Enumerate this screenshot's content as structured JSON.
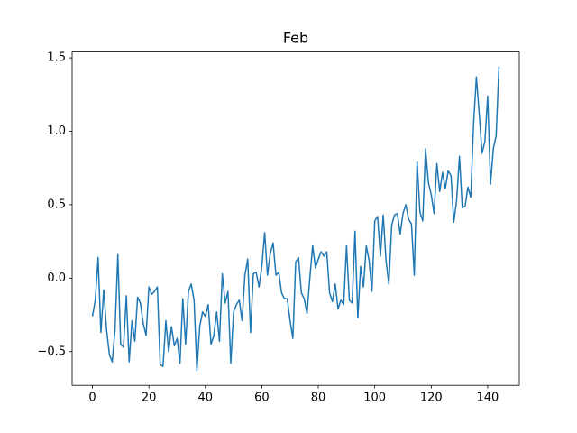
{
  "chart_data": {
    "type": "line",
    "title": "Feb",
    "color": "#1f77b4",
    "x": [
      0,
      1,
      2,
      3,
      4,
      5,
      6,
      7,
      8,
      9,
      10,
      11,
      12,
      13,
      14,
      15,
      16,
      17,
      18,
      19,
      20,
      21,
      22,
      23,
      24,
      25,
      26,
      27,
      28,
      29,
      30,
      31,
      32,
      33,
      34,
      35,
      36,
      37,
      38,
      39,
      40,
      41,
      42,
      43,
      44,
      45,
      46,
      47,
      48,
      49,
      50,
      51,
      52,
      53,
      54,
      55,
      56,
      57,
      58,
      59,
      60,
      61,
      62,
      63,
      64,
      65,
      66,
      67,
      68,
      69,
      70,
      71,
      72,
      73,
      74,
      75,
      76,
      77,
      78,
      79,
      80,
      81,
      82,
      83,
      84,
      85,
      86,
      87,
      88,
      89,
      90,
      91,
      92,
      93,
      94,
      95,
      96,
      97,
      98,
      99,
      100,
      101,
      102,
      103,
      104,
      105,
      106,
      107,
      108,
      109,
      110,
      111,
      112,
      113,
      114,
      115,
      116,
      117,
      118,
      119,
      120,
      121,
      122,
      123,
      124,
      125,
      126,
      127,
      128,
      129,
      130,
      131,
      132,
      133,
      134,
      135,
      136,
      137,
      138,
      139,
      140,
      141,
      142,
      143,
      144
    ],
    "values": [
      -0.26,
      -0.15,
      0.14,
      -0.37,
      -0.08,
      -0.35,
      -0.52,
      -0.57,
      -0.35,
      0.16,
      -0.45,
      -0.47,
      -0.12,
      -0.57,
      -0.29,
      -0.43,
      -0.13,
      -0.17,
      -0.31,
      -0.39,
      -0.06,
      -0.11,
      -0.09,
      -0.06,
      -0.59,
      -0.6,
      -0.29,
      -0.5,
      -0.33,
      -0.46,
      -0.41,
      -0.58,
      -0.14,
      -0.45,
      -0.09,
      -0.04,
      -0.15,
      -0.63,
      -0.33,
      -0.23,
      -0.26,
      -0.18,
      -0.45,
      -0.39,
      -0.23,
      -0.43,
      0.03,
      -0.17,
      -0.09,
      -0.58,
      -0.23,
      -0.18,
      -0.15,
      -0.29,
      0.02,
      0.13,
      -0.37,
      0.03,
      0.04,
      -0.06,
      0.08,
      0.31,
      0.02,
      0.17,
      0.24,
      0.02,
      0.04,
      -0.1,
      -0.14,
      -0.14,
      -0.29,
      -0.41,
      0.11,
      0.14,
      -0.1,
      -0.14,
      -0.24,
      0.0,
      0.22,
      0.07,
      0.13,
      0.18,
      0.15,
      0.18,
      -0.1,
      -0.16,
      -0.04,
      -0.21,
      -0.15,
      -0.18,
      0.22,
      -0.15,
      -0.17,
      0.32,
      -0.27,
      0.08,
      -0.06,
      0.22,
      0.12,
      -0.09,
      0.39,
      0.42,
      0.15,
      0.43,
      0.12,
      -0.04,
      0.36,
      0.43,
      0.44,
      0.3,
      0.44,
      0.5,
      0.4,
      0.37,
      0.02,
      0.79,
      0.45,
      0.39,
      0.88,
      0.65,
      0.57,
      0.44,
      0.78,
      0.59,
      0.72,
      0.61,
      0.73,
      0.7,
      0.38,
      0.53,
      0.83,
      0.48,
      0.49,
      0.62,
      0.55,
      1.05,
      1.37,
      1.12,
      0.85,
      0.93,
      1.24,
      0.64,
      0.88,
      0.97,
      1.44
    ],
    "xlim": [
      -7.2,
      151.2
    ],
    "xticks": [
      0,
      20,
      40,
      60,
      80,
      100,
      120,
      140
    ],
    "ylim": [
      -0.73,
      1.54
    ],
    "yticks": [
      {
        "value": -0.5,
        "label": "−0.5"
      },
      {
        "value": 0,
        "label": "0.0"
      },
      {
        "value": 0.5,
        "label": "0.5"
      },
      {
        "value": 1,
        "label": "1.0"
      },
      {
        "value": 1.5,
        "label": "1.5"
      }
    ]
  }
}
